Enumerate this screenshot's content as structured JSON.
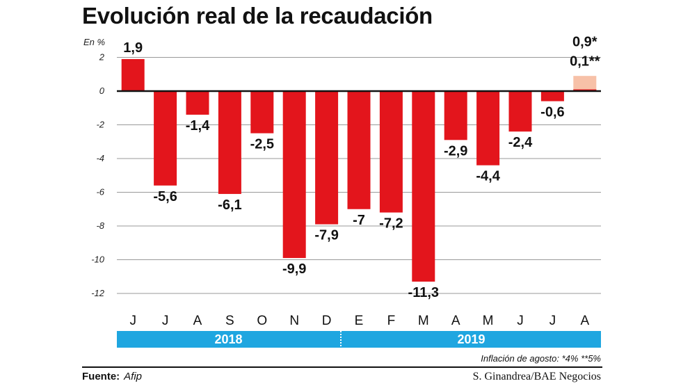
{
  "header": {
    "title": "Evolución real de la recaudación",
    "unit": "En %"
  },
  "footer": {
    "footnote": "Inflación de agosto: *4% **5%",
    "source_label": "Fuente:",
    "source_value": "Afip",
    "credit": "S. Ginandrea/BAE Negocios"
  },
  "years": [
    {
      "label": "2018"
    },
    {
      "label": "2019"
    }
  ],
  "chart_data": {
    "type": "bar",
    "title": "Evolución real de la recaudación",
    "ylabel": "En %",
    "ylim": [
      -12.8,
      2.4
    ],
    "yticks": [
      2,
      0,
      -2,
      -4,
      -6,
      -8,
      -10,
      -12
    ],
    "ytick_labels": [
      "2",
      "0",
      "-2",
      "-4",
      "-6",
      "-8",
      "-10",
      "-12"
    ],
    "grid": true,
    "categories": [
      "J",
      "J",
      "A",
      "S",
      "O",
      "N",
      "D",
      "E",
      "F",
      "M",
      "A",
      "M",
      "J",
      "J",
      "A"
    ],
    "year_groups": [
      {
        "label": "2018",
        "from_index": 0,
        "to_index": 6
      },
      {
        "label": "2019",
        "from_index": 7,
        "to_index": 14
      }
    ],
    "series": [
      {
        "values": [
          1.9,
          -5.6,
          -1.4,
          -6.1,
          -2.5,
          -9.9,
          -7.9,
          -7,
          -7.2,
          -11.3,
          -2.9,
          -4.4,
          -2.4,
          -0.6,
          0.1
        ],
        "labels": [
          "1,9",
          "-5,6",
          "-1,4",
          "-6,1",
          "-2,5",
          "-9,9",
          "-7,9",
          "-7",
          "-7,2",
          "-11,3",
          "-2,9",
          "-4,4",
          "-2,4",
          "-0,6",
          "0,1**"
        ],
        "color": "#e3151c"
      },
      {
        "values": [
          null,
          null,
          null,
          null,
          null,
          null,
          null,
          null,
          null,
          null,
          null,
          null,
          null,
          null,
          0.9
        ],
        "labels": [
          "",
          "",
          "",
          "",
          "",
          "",
          "",
          "",
          "",
          "",
          "",
          "",
          "",
          "",
          "0,9*"
        ],
        "color": "#f7c1a8"
      }
    ],
    "grid_color": "#999999",
    "zero_line_color": "#111111"
  }
}
